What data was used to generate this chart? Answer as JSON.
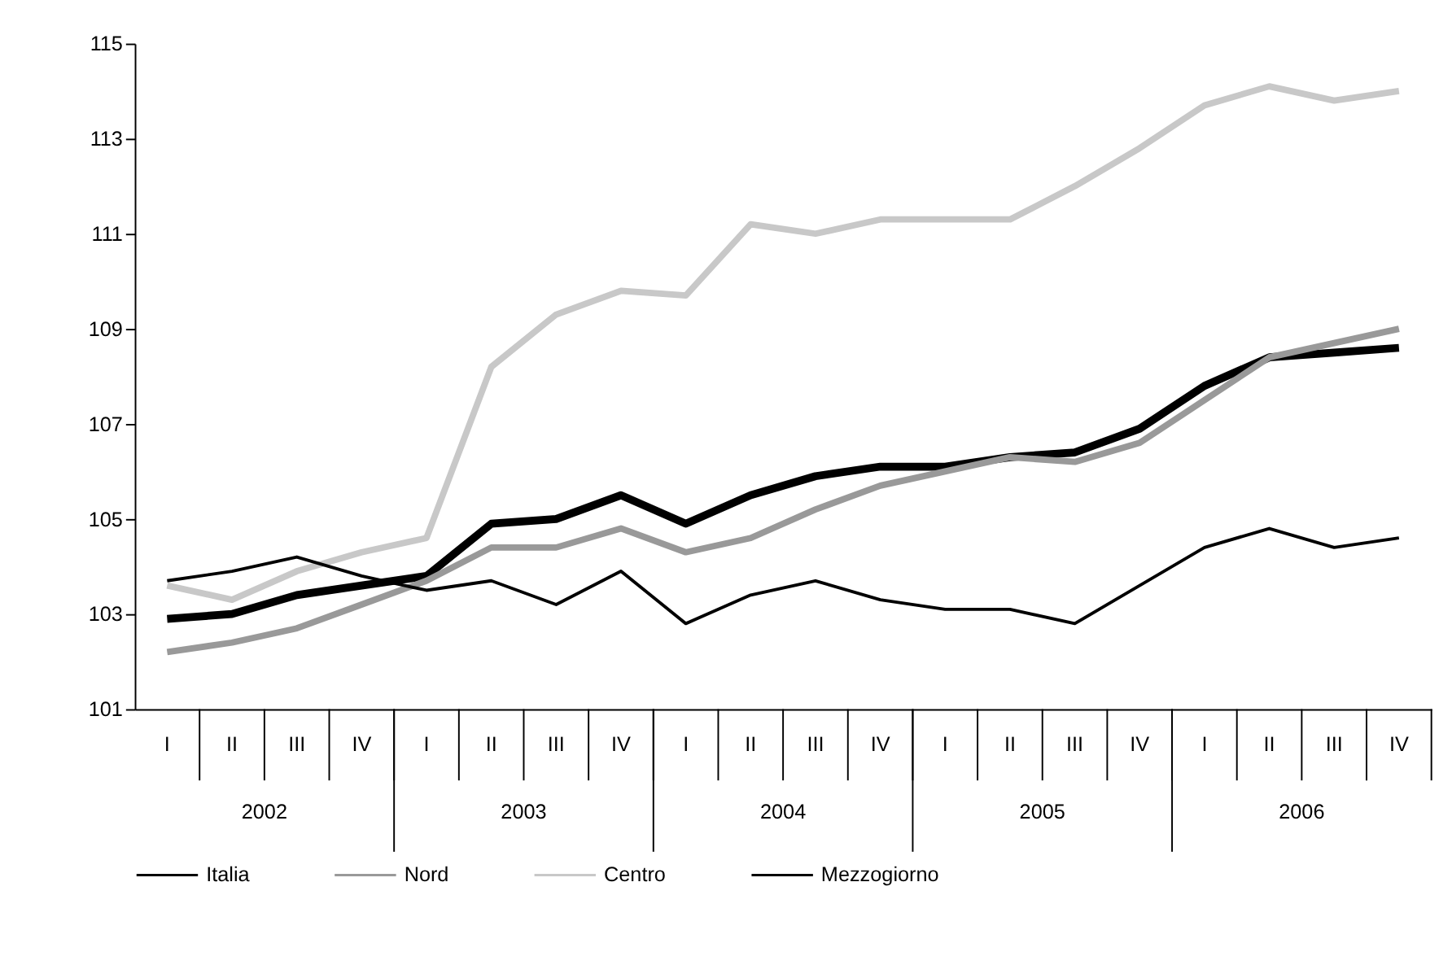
{
  "chart_data": {
    "type": "line",
    "categories": [
      "I",
      "II",
      "III",
      "IV",
      "I",
      "II",
      "III",
      "IV",
      "I",
      "II",
      "III",
      "IV",
      "I",
      "II",
      "III",
      "IV",
      "I",
      "II",
      "III",
      "IV"
    ],
    "series": [
      {
        "name": "Italia",
        "color": "#000000",
        "values": [
          102.9,
          103.0,
          103.4,
          103.6,
          103.8,
          104.9,
          105.0,
          105.5,
          104.9,
          105.5,
          105.9,
          106.1,
          106.1,
          106.3,
          106.4,
          106.9,
          107.8,
          108.4,
          108.5,
          108.6
        ]
      },
      {
        "name": "Nord",
        "color": "#999999",
        "values": [
          102.2,
          102.4,
          102.7,
          103.2,
          103.7,
          104.4,
          104.4,
          104.8,
          104.3,
          104.6,
          105.2,
          105.7,
          106.0,
          106.3,
          106.2,
          106.6,
          107.5,
          108.4,
          108.7,
          109.0
        ]
      },
      {
        "name": "Centro",
        "color": "#c8c8c8",
        "values": [
          103.6,
          103.3,
          103.9,
          104.3,
          104.6,
          108.2,
          109.3,
          109.8,
          109.7,
          111.2,
          111.0,
          111.3,
          111.3,
          111.3,
          112.0,
          112.8,
          113.7,
          114.1,
          113.8,
          114.0
        ]
      },
      {
        "name": "Mezzogiorno",
        "color": "#000000",
        "values": [
          103.7,
          103.9,
          104.2,
          103.8,
          103.5,
          103.7,
          103.2,
          103.9,
          102.8,
          103.4,
          103.7,
          103.3,
          103.1,
          103.1,
          102.8,
          103.6,
          104.4,
          104.8,
          104.4,
          104.6
        ]
      }
    ],
    "annotations": [
      "2002",
      "2003",
      "2004",
      "2005",
      "2006"
    ],
    "ylim": [
      101,
      115
    ],
    "yticks": [
      101,
      103,
      105,
      107,
      109,
      111,
      113,
      115
    ],
    "grid": false,
    "legend": "bottom",
    "marker": "none",
    "line_style": "solid"
  }
}
